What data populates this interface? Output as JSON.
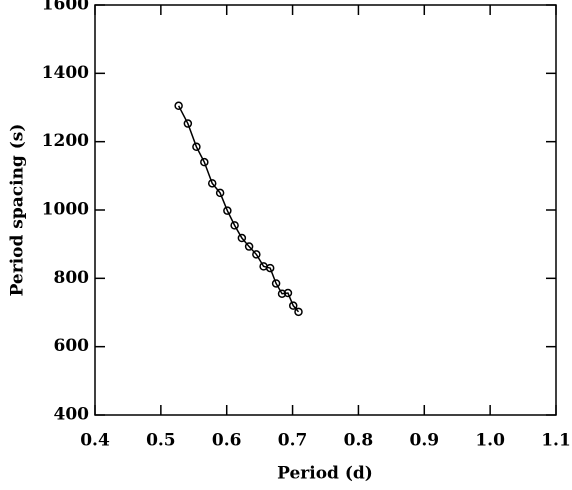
{
  "chart_data": {
    "type": "line",
    "xlabel": "Period (d)",
    "ylabel": "Period spacing (s)",
    "x": [
      0.527,
      0.541,
      0.554,
      0.566,
      0.578,
      0.59,
      0.601,
      0.612,
      0.623,
      0.634,
      0.645,
      0.656,
      0.666,
      0.675,
      0.684,
      0.693,
      0.701,
      0.709
    ],
    "series": [
      {
        "color": "#000000",
        "values": [
          1305,
          1253,
          1185,
          1140,
          1078,
          1050,
          998,
          955,
          918,
          893,
          870,
          835,
          830,
          785,
          755,
          757,
          720,
          702
        ]
      }
    ],
    "xlim": [
      0.4,
      1.1
    ],
    "xticks": [
      0.4,
      0.5,
      0.6,
      0.7,
      0.8,
      0.9,
      {
        "value": 1,
        "label": "1.0"
      },
      1.1
    ],
    "ylim": [
      400,
      1600
    ],
    "yticks": [
      400,
      600,
      800,
      1000,
      1200,
      1400,
      1600
    ]
  }
}
